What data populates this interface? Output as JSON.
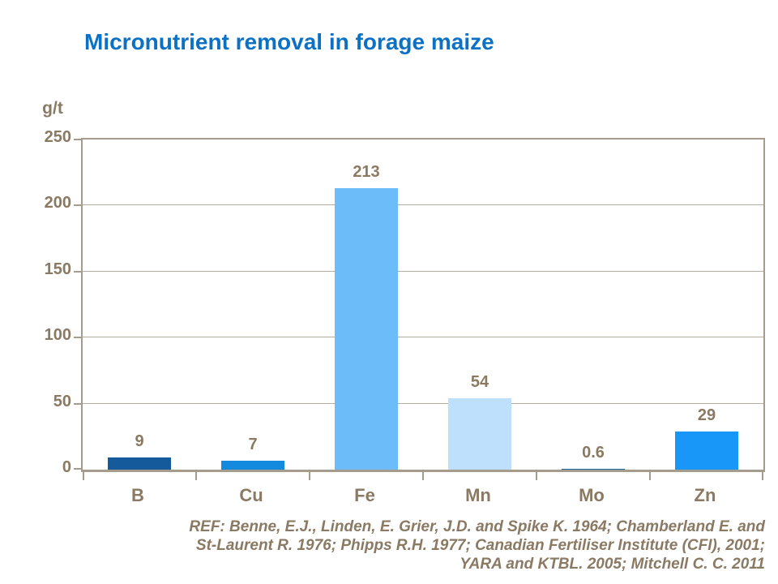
{
  "slide": {
    "title": "Micronutrient removal in forage maize",
    "footer_lines": [
      "REF: Benne, E.J., Linden, E. Grier, J.D. and Spike K. 1964; Chamberland  E. and",
      "St-Laurent R. 1976; Phipps R.H. 1977; Canadian Fertiliser Institute (CFI), 2001;",
      "YARA and KTBL. 2005; Mitchell C. C. 2011"
    ]
  },
  "chart_data": {
    "type": "bar",
    "title": "Micronutrient removal in forage maize",
    "xlabel": "",
    "ylabel": "g/t",
    "categories": [
      "B",
      "Cu",
      "Fe",
      "Mn",
      "Mo",
      "Zn"
    ],
    "values": [
      9,
      7,
      213,
      54,
      0.6,
      29
    ],
    "value_labels": [
      "9",
      "7",
      "213",
      "54",
      "0.6",
      "29"
    ],
    "bar_colors": [
      "#155a9b",
      "#148ade",
      "#6dbcfa",
      "#bfe0fc",
      "#1568ac",
      "#1897f8"
    ],
    "ylim": [
      0,
      250
    ],
    "yticks": [
      0,
      50,
      100,
      150,
      200,
      250
    ],
    "grid": true,
    "legend_position": "none",
    "colors": {
      "title_text": "#0c71c4",
      "axis_text": "#8a7963",
      "axis_line": "#a69c8e",
      "gridline": "#b6ac9e",
      "background": "#ffffff"
    }
  }
}
